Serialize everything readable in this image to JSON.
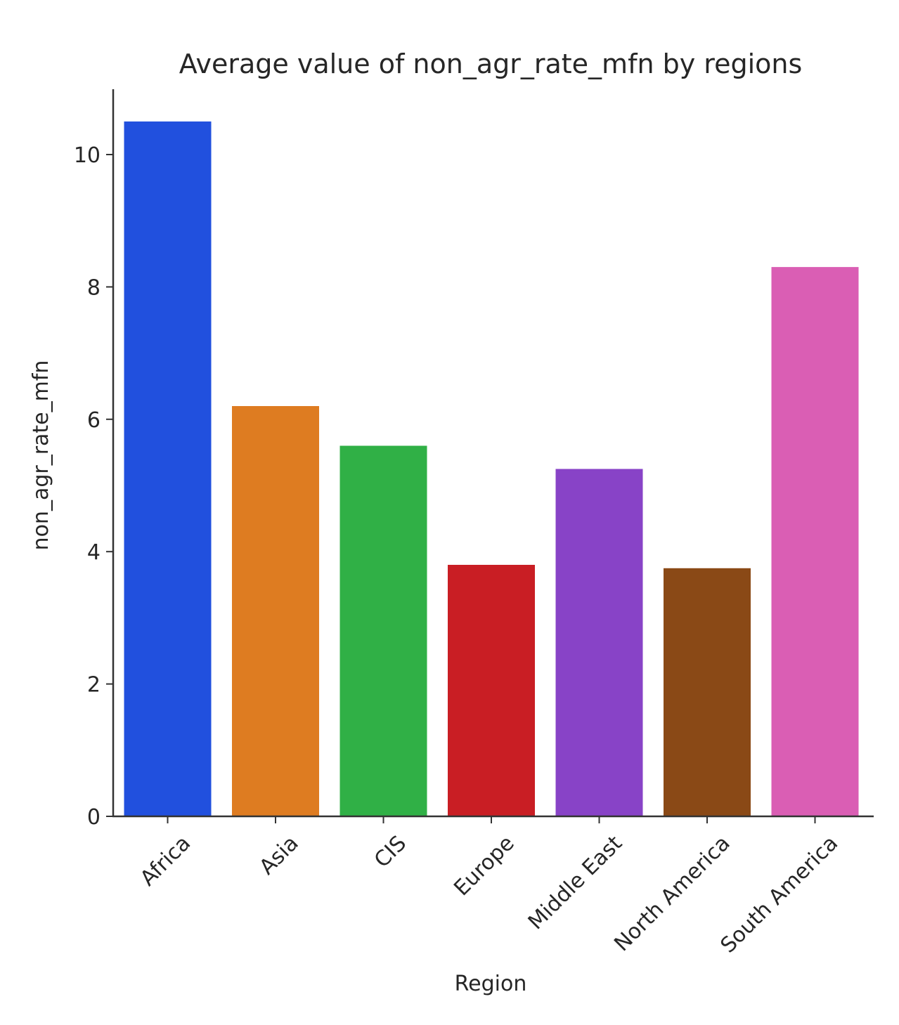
{
  "chart_data": {
    "type": "bar",
    "title": "Average value of non_agr_rate_mfn by regions",
    "xlabel": "Region",
    "ylabel": "non_agr_rate_mfn",
    "categories": [
      "Africa",
      "Asia",
      "CIS",
      "Europe",
      "Middle East",
      "North America",
      "South America"
    ],
    "values": [
      10.5,
      6.2,
      5.6,
      3.8,
      5.25,
      3.75,
      8.3
    ],
    "colors": [
      "#2150de",
      "#de7c21",
      "#30b046",
      "#c91e24",
      "#8843c7",
      "#8a4916",
      "#da5eb4"
    ],
    "ylim": [
      0,
      11
    ],
    "yticks": [
      "0",
      "2",
      "4",
      "6",
      "8",
      "10"
    ],
    "grid": false,
    "legend": "none"
  }
}
